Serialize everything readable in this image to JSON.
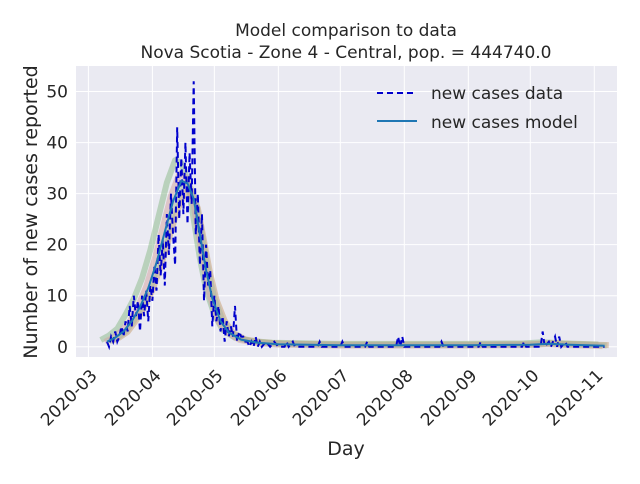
{
  "chart_data": {
    "type": "line",
    "title_line1": "Model comparison to data",
    "title_line2": "Nova Scotia - Zone 4 - Central, pop. = 444740.0",
    "xlabel": "Day",
    "ylabel": "Number of new cases reported",
    "x_axis_type": "date",
    "xlim": [
      "2020-02-24",
      "2020-11-12"
    ],
    "ylim": [
      -2,
      55
    ],
    "yticks": [
      0,
      10,
      20,
      30,
      40,
      50
    ],
    "xticks": [
      "2020-03-01",
      "2020-04-01",
      "2020-05-01",
      "2020-06-01",
      "2020-07-01",
      "2020-08-01",
      "2020-09-01",
      "2020-10-01",
      "2020-11-01"
    ],
    "xtick_labels": [
      "2020-03",
      "2020-04",
      "2020-05",
      "2020-06",
      "2020-07",
      "2020-08",
      "2020-09",
      "2020-10",
      "2020-11"
    ],
    "grid": true,
    "legend_position": "top-right",
    "colors": {
      "data": "#0000cc",
      "model": "#1f77b4",
      "background": "#eaeaf2",
      "grid": "#ffffff",
      "ensemble": [
        "#8fbc8f",
        "#c9a27a",
        "#d4a5a5",
        "#a9b8a0"
      ]
    },
    "series": [
      {
        "name": "new cases data",
        "style": "dashed",
        "points": [
          [
            "2020-03-10",
            1
          ],
          [
            "2020-03-11",
            0
          ],
          [
            "2020-03-12",
            2
          ],
          [
            "2020-03-13",
            1
          ],
          [
            "2020-03-14",
            3
          ],
          [
            "2020-03-15",
            1
          ],
          [
            "2020-03-16",
            2
          ],
          [
            "2020-03-17",
            4
          ],
          [
            "2020-03-18",
            2
          ],
          [
            "2020-03-19",
            5
          ],
          [
            "2020-03-20",
            3
          ],
          [
            "2020-03-21",
            8
          ],
          [
            "2020-03-22",
            4
          ],
          [
            "2020-03-23",
            10
          ],
          [
            "2020-03-24",
            6
          ],
          [
            "2020-03-25",
            9
          ],
          [
            "2020-03-26",
            3
          ],
          [
            "2020-03-27",
            10
          ],
          [
            "2020-03-28",
            6
          ],
          [
            "2020-03-29",
            11
          ],
          [
            "2020-03-30",
            5
          ],
          [
            "2020-03-31",
            12
          ],
          [
            "2020-04-01",
            9
          ],
          [
            "2020-04-02",
            16
          ],
          [
            "2020-04-03",
            11
          ],
          [
            "2020-04-04",
            22
          ],
          [
            "2020-04-05",
            14
          ],
          [
            "2020-04-06",
            21
          ],
          [
            "2020-04-07",
            12
          ],
          [
            "2020-04-08",
            26
          ],
          [
            "2020-04-09",
            18
          ],
          [
            "2020-04-10",
            30
          ],
          [
            "2020-04-11",
            22
          ],
          [
            "2020-04-12",
            16
          ],
          [
            "2020-04-13",
            43
          ],
          [
            "2020-04-14",
            25
          ],
          [
            "2020-04-15",
            37
          ],
          [
            "2020-04-16",
            26
          ],
          [
            "2020-04-17",
            40
          ],
          [
            "2020-04-18",
            24
          ],
          [
            "2020-04-19",
            38
          ],
          [
            "2020-04-20",
            28
          ],
          [
            "2020-04-21",
            52
          ],
          [
            "2020-04-22",
            22
          ],
          [
            "2020-04-23",
            30
          ],
          [
            "2020-04-24",
            16
          ],
          [
            "2020-04-25",
            26
          ],
          [
            "2020-04-26",
            9
          ],
          [
            "2020-04-27",
            20
          ],
          [
            "2020-04-28",
            12
          ],
          [
            "2020-04-29",
            15
          ],
          [
            "2020-04-30",
            4
          ],
          [
            "2020-05-01",
            10
          ],
          [
            "2020-05-02",
            5
          ],
          [
            "2020-05-03",
            8
          ],
          [
            "2020-05-04",
            3
          ],
          [
            "2020-05-05",
            6
          ],
          [
            "2020-05-06",
            1
          ],
          [
            "2020-05-07",
            5
          ],
          [
            "2020-05-08",
            2
          ],
          [
            "2020-05-09",
            4
          ],
          [
            "2020-05-10",
            2
          ],
          [
            "2020-05-11",
            8
          ],
          [
            "2020-05-12",
            1
          ],
          [
            "2020-05-13",
            3
          ],
          [
            "2020-05-14",
            2
          ],
          [
            "2020-05-15",
            2
          ],
          [
            "2020-05-16",
            1
          ],
          [
            "2020-05-17",
            1
          ],
          [
            "2020-05-18",
            0
          ],
          [
            "2020-05-19",
            1
          ],
          [
            "2020-05-20",
            0
          ],
          [
            "2020-05-21",
            2
          ],
          [
            "2020-05-22",
            0
          ],
          [
            "2020-05-23",
            1
          ],
          [
            "2020-05-24",
            0
          ],
          [
            "2020-05-26",
            1
          ],
          [
            "2020-05-28",
            0
          ],
          [
            "2020-05-30",
            1
          ],
          [
            "2020-06-01",
            0
          ],
          [
            "2020-06-04",
            0
          ],
          [
            "2020-06-05",
            1
          ],
          [
            "2020-06-06",
            0
          ],
          [
            "2020-06-08",
            1
          ],
          [
            "2020-06-09",
            0
          ],
          [
            "2020-06-20",
            0
          ],
          [
            "2020-06-21",
            1
          ],
          [
            "2020-06-22",
            0
          ],
          [
            "2020-07-01",
            0
          ],
          [
            "2020-07-02",
            1
          ],
          [
            "2020-07-03",
            0
          ],
          [
            "2020-07-13",
            0
          ],
          [
            "2020-07-14",
            1
          ],
          [
            "2020-07-15",
            0
          ],
          [
            "2020-07-28",
            0
          ],
          [
            "2020-07-29",
            2
          ],
          [
            "2020-07-30",
            0
          ],
          [
            "2020-07-31",
            2
          ],
          [
            "2020-08-01",
            0
          ],
          [
            "2020-08-18",
            0
          ],
          [
            "2020-08-19",
            1
          ],
          [
            "2020-08-20",
            0
          ],
          [
            "2020-09-06",
            0
          ],
          [
            "2020-09-07",
            1
          ],
          [
            "2020-09-08",
            0
          ],
          [
            "2020-09-27",
            0
          ],
          [
            "2020-09-28",
            1
          ],
          [
            "2020-09-29",
            0
          ],
          [
            "2020-10-06",
            0
          ],
          [
            "2020-10-07",
            3
          ],
          [
            "2020-10-08",
            0
          ],
          [
            "2020-10-10",
            1
          ],
          [
            "2020-10-11",
            0
          ],
          [
            "2020-10-13",
            2
          ],
          [
            "2020-10-14",
            0
          ],
          [
            "2020-10-15",
            2
          ],
          [
            "2020-10-16",
            0
          ],
          [
            "2020-10-18",
            1
          ],
          [
            "2020-10-19",
            0
          ],
          [
            "2020-11-06",
            0
          ]
        ]
      },
      {
        "name": "new cases model",
        "style": "solid",
        "points": [
          [
            "2020-03-10",
            1.0
          ],
          [
            "2020-03-14",
            1.8
          ],
          [
            "2020-03-18",
            3.0
          ],
          [
            "2020-03-22",
            5.0
          ],
          [
            "2020-03-26",
            7.8
          ],
          [
            "2020-03-30",
            11.5
          ],
          [
            "2020-04-03",
            16.5
          ],
          [
            "2020-04-07",
            22.5
          ],
          [
            "2020-04-11",
            28.5
          ],
          [
            "2020-04-15",
            32.5
          ],
          [
            "2020-04-18",
            32.0
          ],
          [
            "2020-04-21",
            29.0
          ],
          [
            "2020-04-24",
            22.0
          ],
          [
            "2020-04-27",
            15.0
          ],
          [
            "2020-04-30",
            9.5
          ],
          [
            "2020-05-04",
            5.0
          ],
          [
            "2020-05-08",
            2.8
          ],
          [
            "2020-05-14",
            1.4
          ],
          [
            "2020-05-22",
            0.8
          ],
          [
            "2020-06-01",
            0.5
          ],
          [
            "2020-07-01",
            0.3
          ],
          [
            "2020-08-01",
            0.3
          ],
          [
            "2020-09-01",
            0.3
          ],
          [
            "2020-10-01",
            0.4
          ],
          [
            "2020-10-10",
            0.6
          ],
          [
            "2020-10-20",
            0.4
          ],
          [
            "2020-11-06",
            0.2
          ]
        ]
      }
    ]
  }
}
